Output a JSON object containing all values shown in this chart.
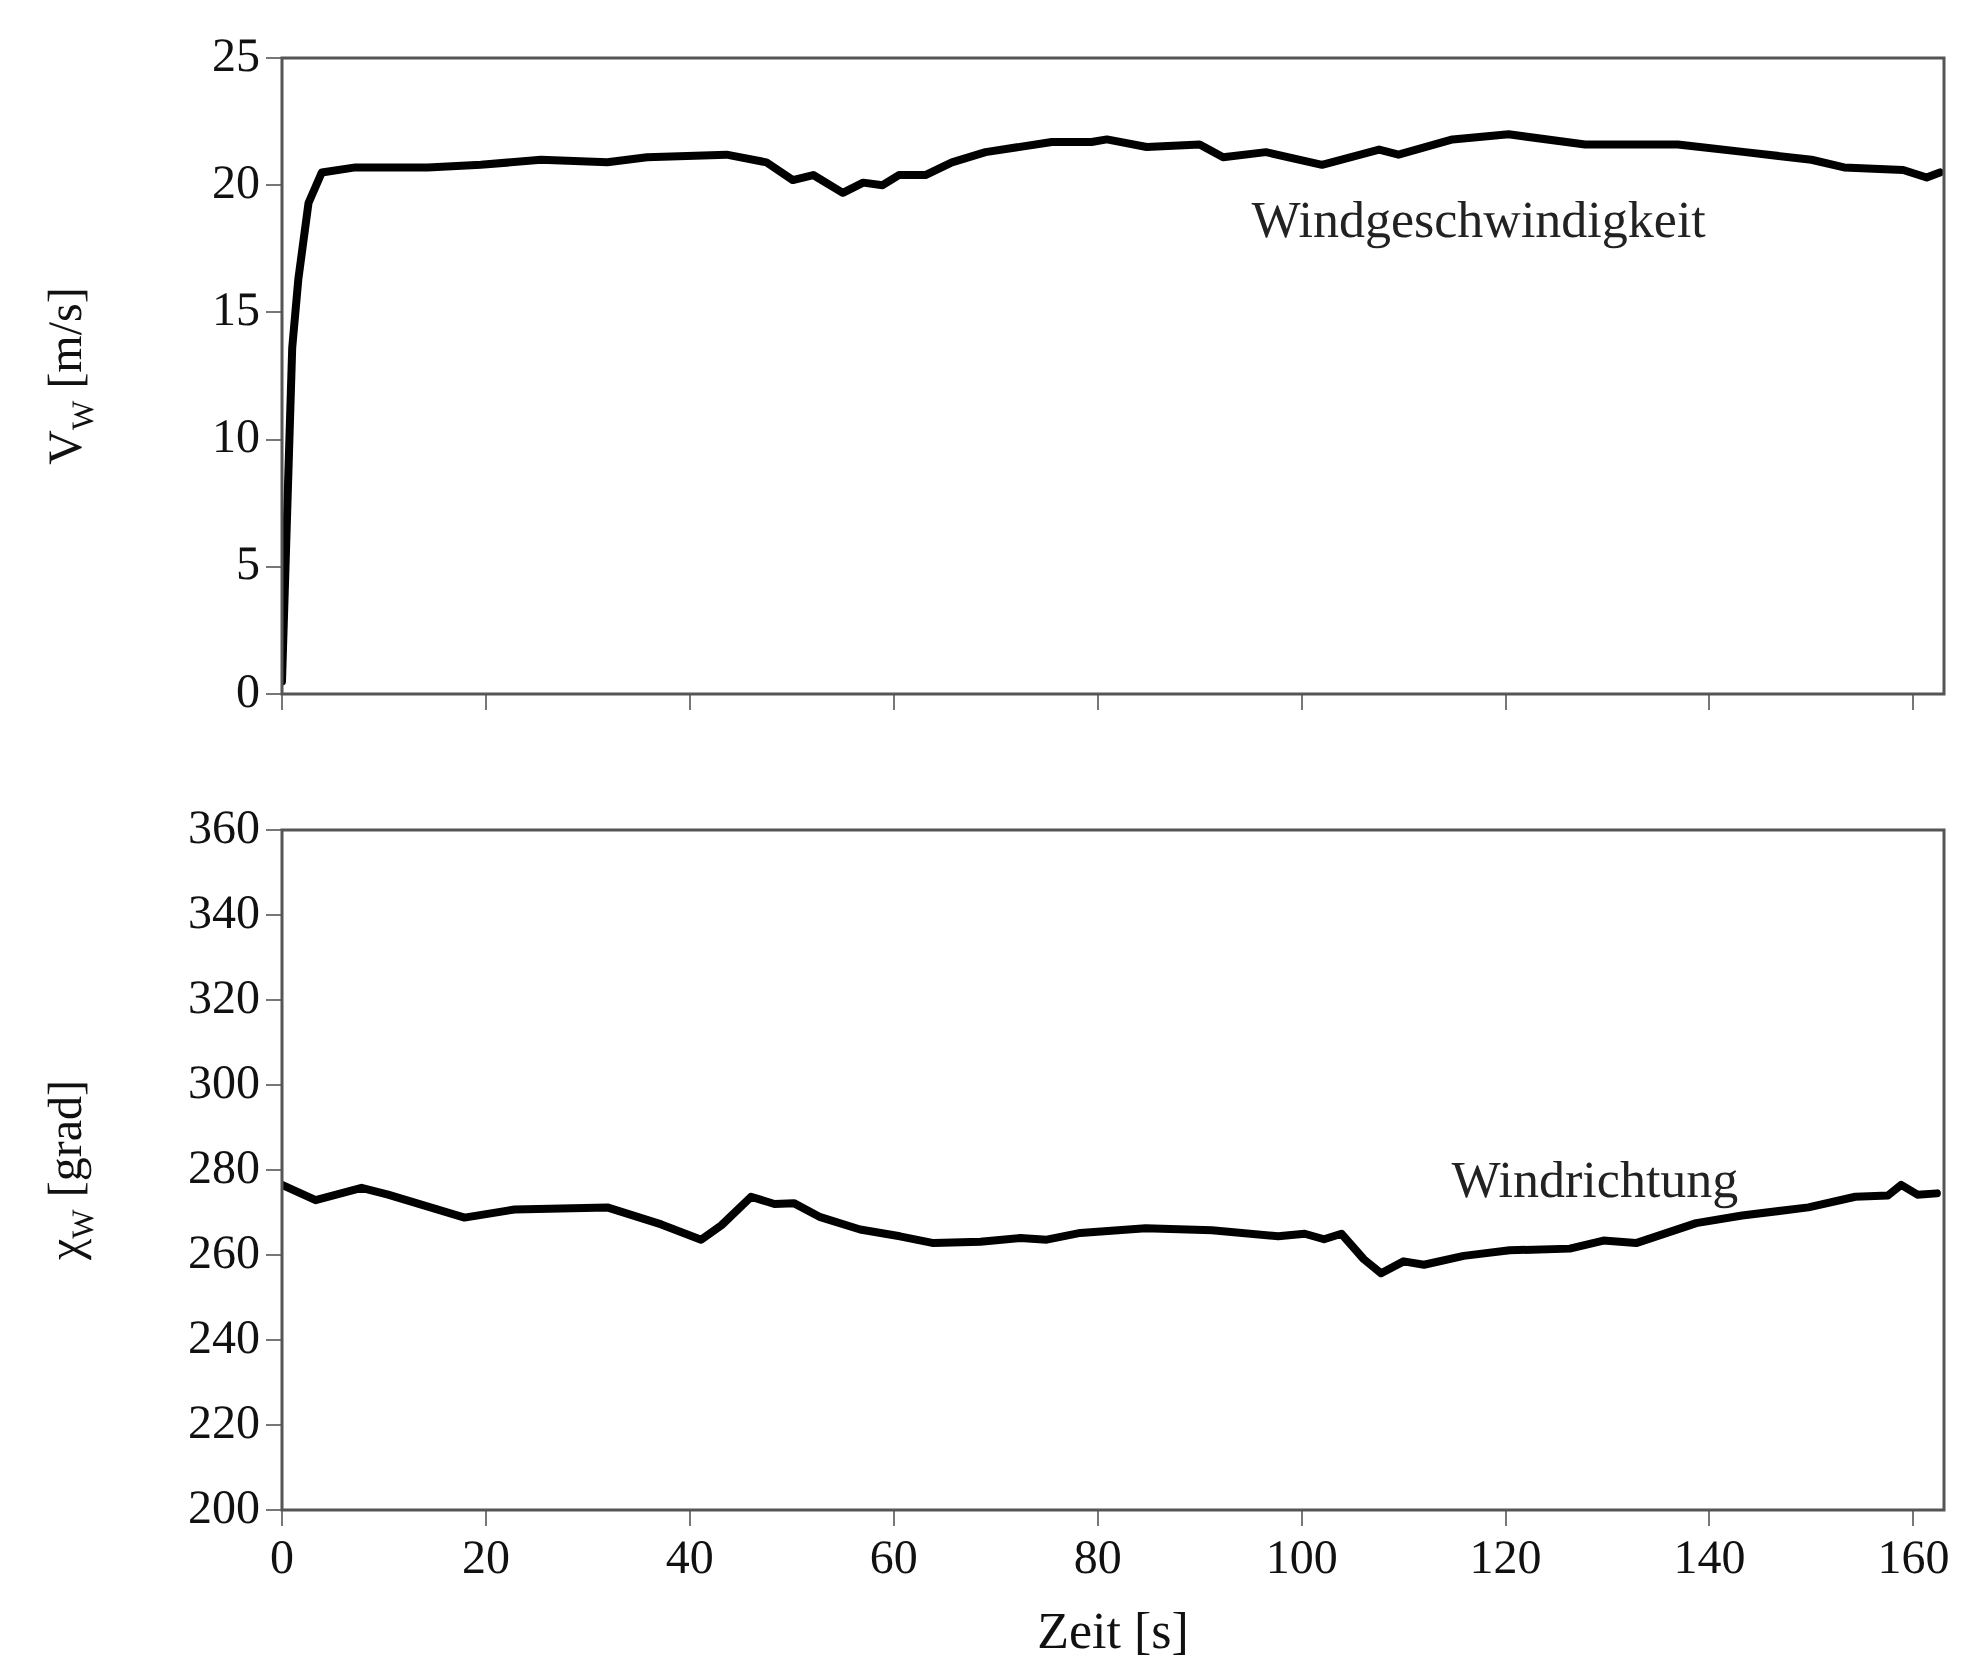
{
  "chart_data": [
    {
      "type": "line",
      "ylabel": "V$_{W}$ [m/s]",
      "xlim": [
        0,
        163
      ],
      "xticks": [
        0,
        20,
        40,
        60,
        80,
        100,
        120,
        140,
        160
      ],
      "ylim": [
        0,
        25
      ],
      "yticks": [
        0,
        5,
        10,
        15,
        20,
        25
      ],
      "tick_labels": "y",
      "grid": false,
      "legend": false,
      "marker": "none",
      "line_style": "solid",
      "annotations": [
        "Windgeschwindigkeit"
      ],
      "series": [
        {
          "color": "#000000",
          "x": [
            0,
            1,
            1.6,
            2.6,
            3.9,
            7.2,
            14.3,
            19.5,
            25.4,
            31.9,
            35.8,
            43.6,
            47.5,
            50.1,
            52.1,
            55,
            57,
            58.9,
            60.5,
            63.1,
            65.7,
            69,
            75.5,
            79.4,
            80.9,
            84.8,
            90,
            92.3,
            96.5,
            102,
            107.6,
            109.5,
            114.8,
            120.3,
            127.8,
            136.9,
            143.5,
            150,
            153.2,
            159,
            161.3,
            162.6
          ],
          "values": [
            0.5,
            13.6,
            16.3,
            19.3,
            20.5,
            20.7,
            20.7,
            20.8,
            21.0,
            20.9,
            21.1,
            21.2,
            20.9,
            20.2,
            20.4,
            19.7,
            20.1,
            20.0,
            20.4,
            20.4,
            20.9,
            21.3,
            21.7,
            21.7,
            21.8,
            21.5,
            21.6,
            21.1,
            21.3,
            20.8,
            21.4,
            21.2,
            21.8,
            22.0,
            21.6,
            21.6,
            21.3,
            21.0,
            20.7,
            20.6,
            20.3,
            20.5
          ]
        }
      ]
    },
    {
      "type": "line",
      "xlabel": "Zeit [s]",
      "ylabel": "χ$_{W}$ [grad]",
      "xlim": [
        0,
        163
      ],
      "xticks": [
        0,
        20,
        40,
        60,
        80,
        100,
        120,
        140,
        160
      ],
      "ylim": [
        200,
        360
      ],
      "yticks": [
        200,
        220,
        240,
        260,
        280,
        300,
        320,
        340,
        360
      ],
      "grid": false,
      "legend": false,
      "marker": "none",
      "line_style": "solid",
      "annotations": [
        "Windrichtung"
      ],
      "series": [
        {
          "color": "#000000",
          "x": [
            0,
            3.3,
            7.8,
            10.4,
            17.9,
            22.8,
            31.9,
            37.2,
            41.1,
            43.1,
            46,
            48.3,
            50.2,
            52.8,
            56.7,
            60.6,
            63.9,
            68.5,
            72.4,
            75,
            78.3,
            84.7,
            91.2,
            97.7,
            100.3,
            102.2,
            103.9,
            106.1,
            107.8,
            110,
            112,
            115.9,
            120.4,
            126.3,
            129.6,
            132.8,
            138.7,
            143.2,
            149.7,
            154.3,
            157.5,
            158.8,
            160.4,
            162.3
          ],
          "values": [
            276.5,
            272.9,
            275.8,
            274.2,
            268.8,
            270.7,
            271.2,
            267.2,
            263.6,
            267,
            273.7,
            272,
            272.2,
            268.9,
            266,
            264.4,
            262.8,
            263.1,
            264,
            263.6,
            265.2,
            266.3,
            265.8,
            264.4,
            265,
            263.7,
            265,
            259,
            255.7,
            258.5,
            257.7,
            259.8,
            261.1,
            261.5,
            263.4,
            262.8,
            267.5,
            269.3,
            271.2,
            273.7,
            274,
            276.5,
            274.2,
            274.5
          ]
        }
      ]
    }
  ]
}
